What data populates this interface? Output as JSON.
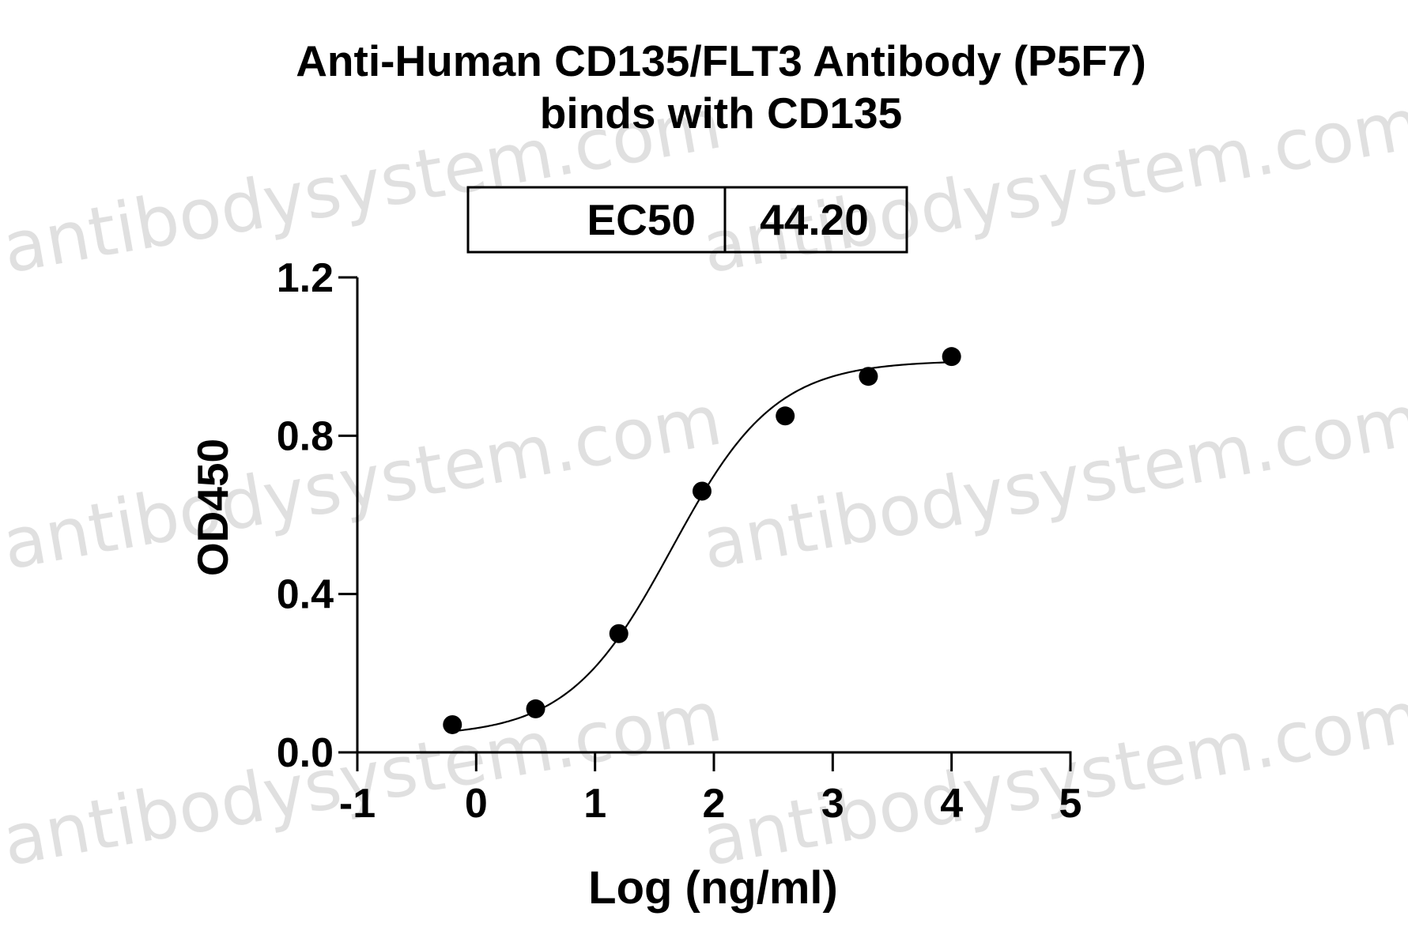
{
  "watermark": "antibodysystem.com",
  "chart_data": {
    "type": "scatter",
    "title": "Anti-Human CD135/FLT3 Antibody (P5F7)",
    "subtitle": "binds with CD135",
    "xlabel": "Log (ng/ml)",
    "ylabel": "OD450",
    "xlim": [
      -1,
      5
    ],
    "ylim": [
      0,
      1.2
    ],
    "x_ticks": [
      "-1",
      "0",
      "1",
      "2",
      "3",
      "4",
      "5"
    ],
    "y_ticks": [
      "0.0",
      "0.4",
      "0.8",
      "1.2"
    ],
    "ec50_label": "EC50",
    "ec50_value": "44.20",
    "series": [
      {
        "x": [
          -0.2,
          0.5,
          1.2,
          1.9,
          2.6,
          3.3,
          4.0
        ],
        "y": [
          0.07,
          0.11,
          0.3,
          0.66,
          0.85,
          0.95,
          1.0
        ],
        "fit": "four-parameter logistic",
        "fit_params": {
          "bottom": 0.04,
          "top": 0.99,
          "logEC50": 1.6454,
          "hill": 1.0
        }
      }
    ],
    "grid": false,
    "legend": "none"
  }
}
